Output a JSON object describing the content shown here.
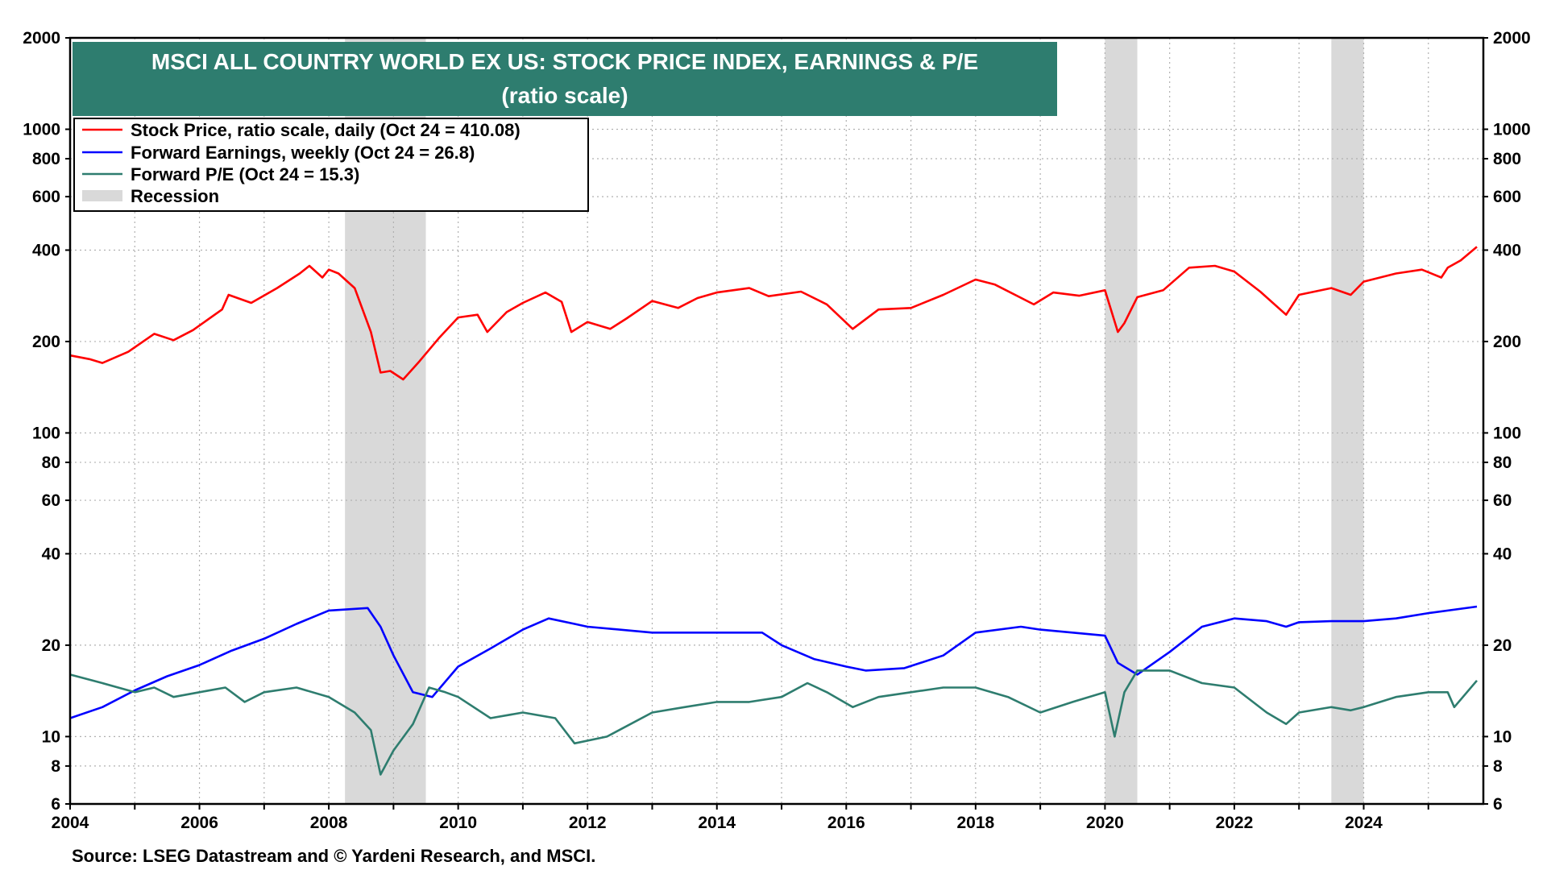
{
  "chart_data": {
    "type": "line",
    "title": "MSCI ALL COUNTRY WORLD EX US: STOCK PRICE INDEX, EARNINGS & P/E",
    "subtitle": "(ratio scale)",
    "source": "Source: LSEG Datastream and © Yardeni Research, and MSCI.",
    "yscale": "log",
    "ylim": [
      6,
      2000
    ],
    "xlim": [
      2004.0,
      2025.85
    ],
    "grid": true,
    "legend_position": "top-left",
    "x_ticks": [
      "2004",
      "2006",
      "2008",
      "2010",
      "2012",
      "2014",
      "2016",
      "2018",
      "2020",
      "2022",
      "2024"
    ],
    "y_ticks": [
      {
        "value": 2000,
        "label": "2000"
      },
      {
        "value": 1000,
        "label": "1000"
      },
      {
        "value": 800,
        "label": "800"
      },
      {
        "value": 600,
        "label": "600"
      },
      {
        "value": 400,
        "label": "400"
      },
      {
        "value": 200,
        "label": "200"
      },
      {
        "value": 100,
        "label": "100"
      },
      {
        "value": 80,
        "label": "80"
      },
      {
        "value": 60,
        "label": "60"
      },
      {
        "value": 40,
        "label": "40"
      },
      {
        "value": 20,
        "label": "20"
      },
      {
        "value": 10,
        "label": "10"
      },
      {
        "value": 8,
        "label": "8"
      },
      {
        "value": 6,
        "label": "6"
      }
    ],
    "recessions": [
      {
        "start": 2008.25,
        "end": 2009.5
      },
      {
        "start": 2020.0,
        "end": 2020.5
      },
      {
        "start": 2023.5,
        "end": 2024.0
      }
    ],
    "series": [
      {
        "name": "Stock Price, ratio scale, daily (Oct 24 = 410.08)",
        "color": "#ff0000",
        "x": [
          2004.0,
          2004.3,
          2004.5,
          2004.9,
          2005.3,
          2005.6,
          2005.9,
          2006.35,
          2006.45,
          2006.8,
          2007.2,
          2007.55,
          2007.7,
          2007.9,
          2008.0,
          2008.15,
          2008.4,
          2008.65,
          2008.8,
          2008.95,
          2009.15,
          2009.4,
          2009.7,
          2010.0,
          2010.3,
          2010.45,
          2010.75,
          2011.0,
          2011.35,
          2011.6,
          2011.75,
          2012.0,
          2012.35,
          2012.6,
          2013.0,
          2013.4,
          2013.7,
          2014.0,
          2014.5,
          2014.8,
          2015.3,
          2015.7,
          2016.1,
          2016.5,
          2017.0,
          2017.5,
          2018.0,
          2018.3,
          2018.9,
          2019.2,
          2019.6,
          2020.0,
          2020.2,
          2020.3,
          2020.5,
          2020.9,
          2021.3,
          2021.7,
          2022.0,
          2022.4,
          2022.8,
          2023.0,
          2023.5,
          2023.8,
          2024.0,
          2024.5,
          2024.9,
          2025.2,
          2025.3,
          2025.5,
          2025.75
        ],
        "values": [
          180,
          175,
          170,
          185,
          212,
          202,
          218,
          255,
          285,
          268,
          300,
          335,
          355,
          325,
          345,
          335,
          300,
          215,
          158,
          160,
          150,
          172,
          205,
          240,
          245,
          215,
          250,
          268,
          290,
          270,
          215,
          232,
          220,
          238,
          272,
          258,
          278,
          290,
          300,
          282,
          292,
          265,
          220,
          255,
          258,
          285,
          320,
          308,
          265,
          290,
          283,
          295,
          215,
          230,
          280,
          295,
          350,
          355,
          340,
          292,
          245,
          285,
          300,
          285,
          315,
          335,
          345,
          325,
          350,
          370,
          410
        ]
      },
      {
        "name": "Forward Earnings, weekly (Oct 24 = 26.8)",
        "color": "#0000ff",
        "x": [
          2004.0,
          2004.5,
          2005.0,
          2005.5,
          2006.0,
          2006.5,
          2007.0,
          2007.5,
          2008.0,
          2008.6,
          2008.8,
          2009.0,
          2009.3,
          2009.6,
          2010.0,
          2010.5,
          2011.0,
          2011.4,
          2011.8,
          2012.0,
          2013.0,
          2014.0,
          2014.7,
          2015.0,
          2015.5,
          2016.0,
          2016.3,
          2016.9,
          2017.5,
          2018.0,
          2018.7,
          2019.0,
          2020.0,
          2020.2,
          2020.5,
          2021.0,
          2021.5,
          2022.0,
          2022.5,
          2022.8,
          2023.0,
          2023.5,
          2024.0,
          2024.5,
          2025.0,
          2025.75
        ],
        "values": [
          11.5,
          12.5,
          14.2,
          15.8,
          17.2,
          19.2,
          21.0,
          23.5,
          26.0,
          26.5,
          23.0,
          18.5,
          14.0,
          13.5,
          17.0,
          19.5,
          22.5,
          24.5,
          23.5,
          23.0,
          22.0,
          22.0,
          22.0,
          20.0,
          18.0,
          17.0,
          16.5,
          16.8,
          18.5,
          22.0,
          23.0,
          22.5,
          21.5,
          17.5,
          16.0,
          19.0,
          23.0,
          24.5,
          24.0,
          23.0,
          23.8,
          24.0,
          24.0,
          24.5,
          25.5,
          26.8
        ]
      },
      {
        "name": "Forward P/E (Oct 24 = 15.3)",
        "color": "#2e7d6f",
        "x": [
          2004.0,
          2004.5,
          2005.0,
          2005.3,
          2005.6,
          2006.0,
          2006.4,
          2006.7,
          2007.0,
          2007.5,
          2008.0,
          2008.4,
          2008.65,
          2008.8,
          2009.0,
          2009.3,
          2009.55,
          2009.8,
          2010.0,
          2010.5,
          2011.0,
          2011.5,
          2011.8,
          2012.3,
          2013.0,
          2013.5,
          2014.0,
          2014.5,
          2015.0,
          2015.4,
          2015.7,
          2016.1,
          2016.5,
          2017.0,
          2017.5,
          2018.0,
          2018.5,
          2019.0,
          2019.5,
          2020.0,
          2020.15,
          2020.3,
          2020.5,
          2021.0,
          2021.5,
          2022.0,
          2022.5,
          2022.8,
          2023.0,
          2023.5,
          2023.8,
          2024.0,
          2024.5,
          2025.0,
          2025.3,
          2025.4,
          2025.75
        ],
        "values": [
          16.0,
          15.0,
          14.0,
          14.5,
          13.5,
          14.0,
          14.5,
          13.0,
          14.0,
          14.5,
          13.5,
          12.0,
          10.5,
          7.5,
          9.0,
          11.0,
          14.5,
          14.0,
          13.5,
          11.5,
          12.0,
          11.5,
          9.5,
          10.0,
          12.0,
          12.5,
          13.0,
          13.0,
          13.5,
          15.0,
          14.0,
          12.5,
          13.5,
          14.0,
          14.5,
          14.5,
          13.5,
          12.0,
          13.0,
          14.0,
          10.0,
          14.0,
          16.5,
          16.5,
          15.0,
          14.5,
          12.0,
          11.0,
          12.0,
          12.5,
          12.2,
          12.5,
          13.5,
          14.0,
          14.0,
          12.5,
          15.3
        ]
      }
    ],
    "legend": [
      {
        "label": "Stock Price, ratio scale, daily (Oct 24 = 410.08)",
        "color": "#ff0000",
        "kind": "line"
      },
      {
        "label": "Forward Earnings, weekly (Oct 24 = 26.8)",
        "color": "#0000ff",
        "kind": "line"
      },
      {
        "label": "Forward P/E (Oct 24 = 15.3)",
        "color": "#2e7d6f",
        "kind": "line"
      },
      {
        "label": "Recession",
        "color": "#d9d9d9",
        "kind": "band"
      }
    ],
    "colors": {
      "title_bg": "#2e7d6f",
      "title_text": "#ffffff",
      "recession": "#d9d9d9",
      "grid": "#b0b0b0"
    }
  }
}
